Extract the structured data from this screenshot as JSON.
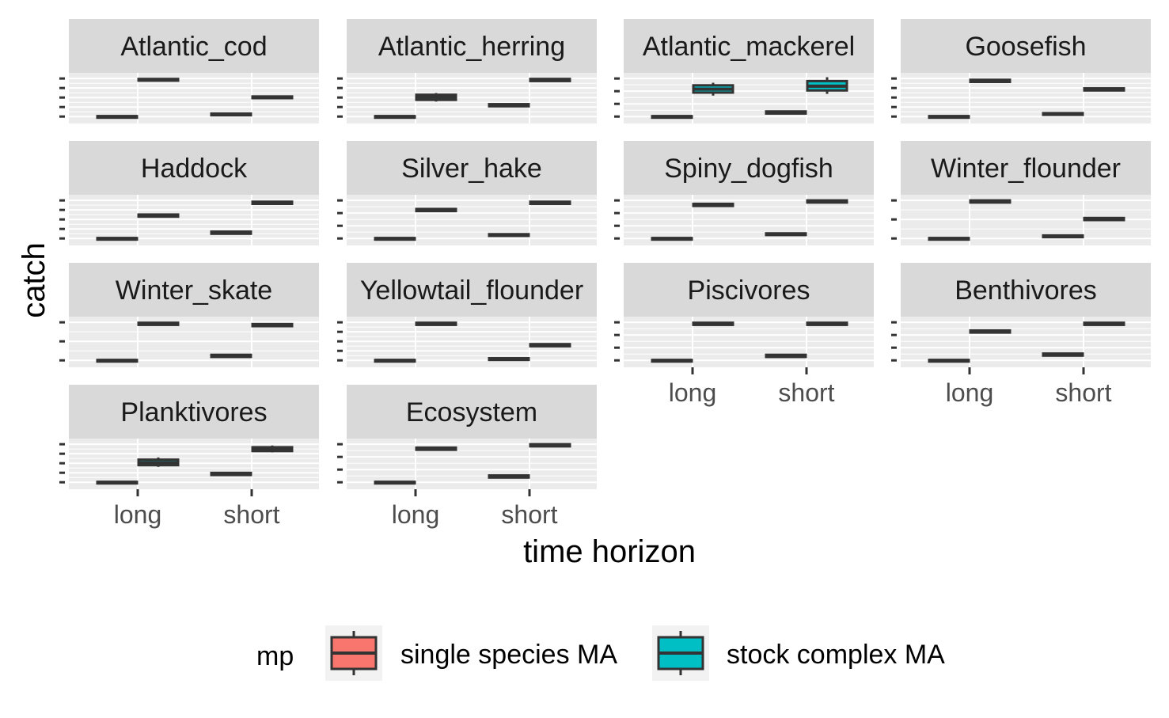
{
  "chart_data": {
    "type": "boxplot",
    "facet_layout": "4 columns, free y scales",
    "xlabel": "time horizon",
    "ylabel": "catch",
    "categories": [
      "long",
      "short"
    ],
    "series_names": [
      "single species MA",
      "stock complex MA"
    ],
    "y_tick_labels_shown": false,
    "grid": true,
    "legend": {
      "title": "mp",
      "position": "bottom",
      "entries": [
        {
          "label": "single species MA",
          "color": "#F8766D"
        },
        {
          "label": "stock complex MA",
          "color": "#00BFC4"
        }
      ]
    },
    "panels": [
      {
        "title": "Atlantic_cod",
        "n_yticks": 5,
        "boxes": [
          {
            "x": "long",
            "series": "single species MA",
            "q1": 0.06,
            "median": 0.07,
            "q3": 0.08,
            "lower": 0.05,
            "upper": 0.09
          },
          {
            "x": "long",
            "series": "stock complex MA",
            "q1": 0.91,
            "median": 0.93,
            "q3": 0.95,
            "lower": 0.9,
            "upper": 0.96
          },
          {
            "x": "short",
            "series": "single species MA",
            "q1": 0.1,
            "median": 0.12,
            "q3": 0.14,
            "lower": 0.09,
            "upper": 0.15
          },
          {
            "x": "short",
            "series": "stock complex MA",
            "q1": 0.5,
            "median": 0.52,
            "q3": 0.54,
            "lower": 0.49,
            "upper": 0.55
          }
        ]
      },
      {
        "title": "Atlantic_herring",
        "n_yticks": 5,
        "boxes": [
          {
            "x": "long",
            "series": "single species MA",
            "q1": 0.06,
            "median": 0.07,
            "q3": 0.08,
            "lower": 0.05,
            "upper": 0.09
          },
          {
            "x": "long",
            "series": "stock complex MA",
            "q1": 0.46,
            "median": 0.52,
            "q3": 0.58,
            "lower": 0.42,
            "upper": 0.62
          },
          {
            "x": "short",
            "series": "single species MA",
            "q1": 0.31,
            "median": 0.33,
            "q3": 0.36,
            "lower": 0.3,
            "upper": 0.37
          },
          {
            "x": "short",
            "series": "stock complex MA",
            "q1": 0.9,
            "median": 0.92,
            "q3": 0.95,
            "lower": 0.89,
            "upper": 0.96
          }
        ]
      },
      {
        "title": "Atlantic_mackerel",
        "n_yticks": 4,
        "boxes": [
          {
            "x": "long",
            "series": "single species MA",
            "q1": 0.06,
            "median": 0.07,
            "q3": 0.08,
            "lower": 0.05,
            "upper": 0.09
          },
          {
            "x": "long",
            "series": "stock complex MA",
            "q1": 0.63,
            "median": 0.71,
            "q3": 0.8,
            "lower": 0.56,
            "upper": 0.86
          },
          {
            "x": "short",
            "series": "single species MA",
            "q1": 0.14,
            "median": 0.16,
            "q3": 0.19,
            "lower": 0.13,
            "upper": 0.2
          },
          {
            "x": "short",
            "series": "stock complex MA",
            "q1": 0.68,
            "median": 0.78,
            "q3": 0.9,
            "lower": 0.6,
            "upper": 0.99
          }
        ]
      },
      {
        "title": "Goosefish",
        "n_yticks": 5,
        "boxes": [
          {
            "x": "long",
            "series": "single species MA",
            "q1": 0.06,
            "median": 0.07,
            "q3": 0.08,
            "lower": 0.05,
            "upper": 0.09
          },
          {
            "x": "long",
            "series": "stock complex MA",
            "q1": 0.88,
            "median": 0.9,
            "q3": 0.93,
            "lower": 0.87,
            "upper": 0.94
          },
          {
            "x": "short",
            "series": "single species MA",
            "q1": 0.11,
            "median": 0.13,
            "q3": 0.15,
            "lower": 0.1,
            "upper": 0.16
          },
          {
            "x": "short",
            "series": "stock complex MA",
            "q1": 0.68,
            "median": 0.7,
            "q3": 0.73,
            "lower": 0.67,
            "upper": 0.74
          }
        ]
      },
      {
        "title": "Haddock",
        "n_yticks": 5,
        "boxes": [
          {
            "x": "long",
            "series": "single species MA",
            "q1": 0.06,
            "median": 0.07,
            "q3": 0.08,
            "lower": 0.05,
            "upper": 0.09
          },
          {
            "x": "long",
            "series": "stock complex MA",
            "q1": 0.58,
            "median": 0.6,
            "q3": 0.63,
            "lower": 0.57,
            "upper": 0.64
          },
          {
            "x": "short",
            "series": "single species MA",
            "q1": 0.18,
            "median": 0.2,
            "q3": 0.23,
            "lower": 0.17,
            "upper": 0.24
          },
          {
            "x": "short",
            "series": "stock complex MA",
            "q1": 0.88,
            "median": 0.9,
            "q3": 0.93,
            "lower": 0.87,
            "upper": 0.94
          }
        ]
      },
      {
        "title": "Silver_hake",
        "n_yticks": 4,
        "boxes": [
          {
            "x": "long",
            "series": "single species MA",
            "q1": 0.06,
            "median": 0.07,
            "q3": 0.08,
            "lower": 0.05,
            "upper": 0.09
          },
          {
            "x": "long",
            "series": "stock complex MA",
            "q1": 0.71,
            "median": 0.73,
            "q3": 0.76,
            "lower": 0.7,
            "upper": 0.77
          },
          {
            "x": "short",
            "series": "single species MA",
            "q1": 0.13,
            "median": 0.15,
            "q3": 0.17,
            "lower": 0.12,
            "upper": 0.18
          },
          {
            "x": "short",
            "series": "stock complex MA",
            "q1": 0.88,
            "median": 0.9,
            "q3": 0.93,
            "lower": 0.87,
            "upper": 0.94
          }
        ]
      },
      {
        "title": "Spiny_dogfish",
        "n_yticks": 4,
        "boxes": [
          {
            "x": "long",
            "series": "single species MA",
            "q1": 0.06,
            "median": 0.07,
            "q3": 0.08,
            "lower": 0.05,
            "upper": 0.09
          },
          {
            "x": "long",
            "series": "stock complex MA",
            "q1": 0.83,
            "median": 0.85,
            "q3": 0.88,
            "lower": 0.82,
            "upper": 0.89
          },
          {
            "x": "short",
            "series": "single species MA",
            "q1": 0.15,
            "median": 0.17,
            "q3": 0.19,
            "lower": 0.14,
            "upper": 0.2
          },
          {
            "x": "short",
            "series": "stock complex MA",
            "q1": 0.91,
            "median": 0.93,
            "q3": 0.96,
            "lower": 0.9,
            "upper": 0.97
          }
        ]
      },
      {
        "title": "Winter_flounder",
        "n_yticks": 3,
        "boxes": [
          {
            "x": "long",
            "series": "single species MA",
            "q1": 0.06,
            "median": 0.07,
            "q3": 0.08,
            "lower": 0.05,
            "upper": 0.09
          },
          {
            "x": "long",
            "series": "stock complex MA",
            "q1": 0.91,
            "median": 0.93,
            "q3": 0.96,
            "lower": 0.9,
            "upper": 0.97
          },
          {
            "x": "short",
            "series": "single species MA",
            "q1": 0.1,
            "median": 0.12,
            "q3": 0.14,
            "lower": 0.09,
            "upper": 0.15
          },
          {
            "x": "short",
            "series": "stock complex MA",
            "q1": 0.5,
            "median": 0.52,
            "q3": 0.55,
            "lower": 0.49,
            "upper": 0.56
          }
        ]
      },
      {
        "title": "Winter_skate",
        "n_yticks": 3,
        "boxes": [
          {
            "x": "long",
            "series": "single species MA",
            "q1": 0.06,
            "median": 0.07,
            "q3": 0.08,
            "lower": 0.05,
            "upper": 0.09
          },
          {
            "x": "long",
            "series": "stock complex MA",
            "q1": 0.9,
            "median": 0.92,
            "q3": 0.95,
            "lower": 0.89,
            "upper": 0.96
          },
          {
            "x": "short",
            "series": "single species MA",
            "q1": 0.15,
            "median": 0.17,
            "q3": 0.2,
            "lower": 0.14,
            "upper": 0.21
          },
          {
            "x": "short",
            "series": "stock complex MA",
            "q1": 0.87,
            "median": 0.89,
            "q3": 0.92,
            "lower": 0.86,
            "upper": 0.93
          }
        ]
      },
      {
        "title": "Yellowtail_flounder",
        "n_yticks": 5,
        "boxes": [
          {
            "x": "long",
            "series": "single species MA",
            "q1": 0.06,
            "median": 0.07,
            "q3": 0.08,
            "lower": 0.05,
            "upper": 0.09
          },
          {
            "x": "long",
            "series": "stock complex MA",
            "q1": 0.9,
            "median": 0.92,
            "q3": 0.95,
            "lower": 0.89,
            "upper": 0.96
          },
          {
            "x": "short",
            "series": "single species MA",
            "q1": 0.08,
            "median": 0.1,
            "q3": 0.12,
            "lower": 0.07,
            "upper": 0.13
          },
          {
            "x": "short",
            "series": "stock complex MA",
            "q1": 0.4,
            "median": 0.42,
            "q3": 0.45,
            "lower": 0.39,
            "upper": 0.46
          }
        ]
      },
      {
        "title": "Piscivores",
        "n_yticks": 4,
        "boxes": [
          {
            "x": "long",
            "series": "single species MA",
            "q1": 0.06,
            "median": 0.07,
            "q3": 0.08,
            "lower": 0.05,
            "upper": 0.09
          },
          {
            "x": "long",
            "series": "stock complex MA",
            "q1": 0.9,
            "median": 0.92,
            "q3": 0.95,
            "lower": 0.89,
            "upper": 0.96
          },
          {
            "x": "short",
            "series": "single species MA",
            "q1": 0.15,
            "median": 0.17,
            "q3": 0.2,
            "lower": 0.14,
            "upper": 0.21
          },
          {
            "x": "short",
            "series": "stock complex MA",
            "q1": 0.9,
            "median": 0.92,
            "q3": 0.95,
            "lower": 0.89,
            "upper": 0.96
          }
        ]
      },
      {
        "title": "Benthivores",
        "n_yticks": 4,
        "boxes": [
          {
            "x": "long",
            "series": "single species MA",
            "q1": 0.06,
            "median": 0.07,
            "q3": 0.08,
            "lower": 0.05,
            "upper": 0.09
          },
          {
            "x": "long",
            "series": "stock complex MA",
            "q1": 0.72,
            "median": 0.74,
            "q3": 0.77,
            "lower": 0.71,
            "upper": 0.78
          },
          {
            "x": "short",
            "series": "single species MA",
            "q1": 0.18,
            "median": 0.2,
            "q3": 0.23,
            "lower": 0.17,
            "upper": 0.24
          },
          {
            "x": "short",
            "series": "stock complex MA",
            "q1": 0.9,
            "median": 0.92,
            "q3": 0.95,
            "lower": 0.89,
            "upper": 0.96
          }
        ]
      },
      {
        "title": "Planktivores",
        "n_yticks": 5,
        "boxes": [
          {
            "x": "long",
            "series": "single species MA",
            "q1": 0.06,
            "median": 0.07,
            "q3": 0.08,
            "lower": 0.05,
            "upper": 0.09
          },
          {
            "x": "long",
            "series": "stock complex MA",
            "q1": 0.47,
            "median": 0.53,
            "q3": 0.6,
            "lower": 0.43,
            "upper": 0.65
          },
          {
            "x": "short",
            "series": "single species MA",
            "q1": 0.24,
            "median": 0.26,
            "q3": 0.29,
            "lower": 0.23,
            "upper": 0.3
          },
          {
            "x": "short",
            "series": "stock complex MA",
            "q1": 0.8,
            "median": 0.84,
            "q3": 0.89,
            "lower": 0.77,
            "upper": 0.93
          }
        ]
      },
      {
        "title": "Ecosystem",
        "n_yticks": 4,
        "boxes": [
          {
            "x": "long",
            "series": "single species MA",
            "q1": 0.06,
            "median": 0.07,
            "q3": 0.08,
            "lower": 0.05,
            "upper": 0.09
          },
          {
            "x": "long",
            "series": "stock complex MA",
            "q1": 0.83,
            "median": 0.85,
            "q3": 0.88,
            "lower": 0.82,
            "upper": 0.89
          },
          {
            "x": "short",
            "series": "single species MA",
            "q1": 0.18,
            "median": 0.2,
            "q3": 0.23,
            "lower": 0.17,
            "upper": 0.24
          },
          {
            "x": "short",
            "series": "stock complex MA",
            "q1": 0.91,
            "median": 0.93,
            "q3": 0.96,
            "lower": 0.9,
            "upper": 0.97
          }
        ]
      }
    ]
  }
}
